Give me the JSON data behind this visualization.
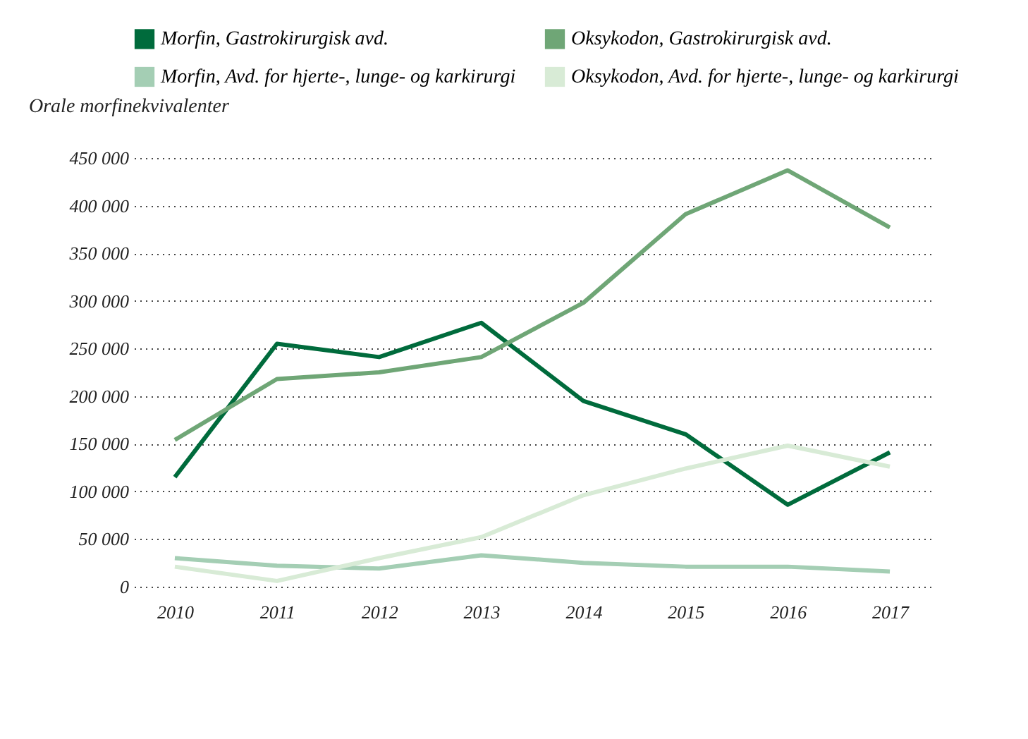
{
  "chart_data": {
    "type": "line",
    "ylabel": "Orale morfinekvivalenter",
    "categories": [
      "2010",
      "2011",
      "2012",
      "2013",
      "2014",
      "2015",
      "2016",
      "2017"
    ],
    "series": [
      {
        "name": "Morfin, Gastrokirurgisk avd.",
        "color": "#006b3c",
        "values": [
          115000,
          255000,
          241000,
          277000,
          195000,
          160000,
          86000,
          141000
        ]
      },
      {
        "name": "Oksykodon, Gastrokirurgisk avd.",
        "color": "#6fa676",
        "values": [
          154000,
          218000,
          225000,
          241000,
          298000,
          391000,
          437000,
          377000
        ]
      },
      {
        "name": "Morfin, Avd. for hjerte-, lunge- og karkirurgi",
        "color": "#a4ceb4",
        "values": [
          30000,
          22000,
          19000,
          33000,
          25000,
          21000,
          21000,
          16000
        ]
      },
      {
        "name": "Oksykodon, Avd. for hjerte-, lunge- og karkirurgi",
        "color": "#d8ebd6",
        "values": [
          21000,
          6000,
          30000,
          52000,
          96000,
          124000,
          148000,
          126000
        ]
      }
    ],
    "ylim": [
      0,
      450000
    ],
    "yticks": [
      {
        "value": 0,
        "label": "0"
      },
      {
        "value": 50000,
        "label": "50 000"
      },
      {
        "value": 100000,
        "label": "100 000"
      },
      {
        "value": 150000,
        "label": "150 000"
      },
      {
        "value": 200000,
        "label": "200 000"
      },
      {
        "value": 250000,
        "label": "250 000"
      },
      {
        "value": 300000,
        "label": "300 000"
      },
      {
        "value": 350000,
        "label": "350 000"
      },
      {
        "value": 400000,
        "label": "400 000"
      },
      {
        "value": 450000,
        "label": "450 000"
      }
    ],
    "grid": "y",
    "legend": "top left",
    "marker": "none",
    "line_style": "solid"
  }
}
